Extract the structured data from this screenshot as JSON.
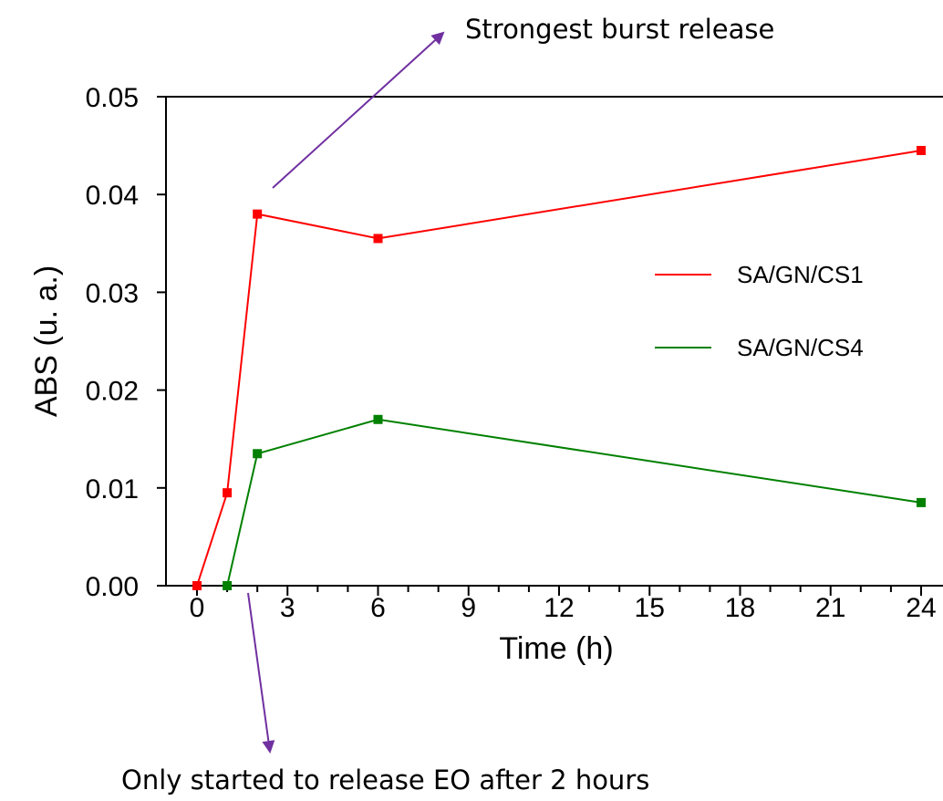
{
  "chart_data": {
    "type": "line",
    "title": "",
    "xlabel": "Time (h)",
    "ylabel": "ABS (u. a.)",
    "xlim": [
      -1,
      24.3
    ],
    "ylim": [
      0,
      0.05
    ],
    "xticks": [
      0,
      3,
      6,
      9,
      12,
      15,
      18,
      21,
      24
    ],
    "xtick_labels": [
      "0",
      "3",
      "6",
      "9",
      "12",
      "15",
      "18",
      "21",
      "24"
    ],
    "yticks": [
      0,
      0.01,
      0.02,
      0.03,
      0.04,
      0.05
    ],
    "ytick_labels": [
      "0.00",
      "0.01",
      "0.02",
      "0.03",
      "0.04",
      "0.05"
    ],
    "grid": false,
    "legend_position": "right",
    "series": [
      {
        "name": "SA/GN/CS1",
        "color": "#ff0000",
        "x": [
          0,
          1,
          2,
          6,
          24
        ],
        "y": [
          0,
          0.0095,
          0.038,
          0.0355,
          0.0445
        ]
      },
      {
        "name": "SA/GN/CS4",
        "color": "#008000",
        "x": [
          1,
          2,
          6,
          24
        ],
        "y": [
          0,
          0.0135,
          0.017,
          0.0085
        ]
      }
    ],
    "annotations": [
      {
        "text": "Strongest burst release",
        "points_to": {
          "x": 2,
          "y": 0.038
        },
        "arrow_color": "#7030a0"
      },
      {
        "text": "Only started to release EO after 2 hours",
        "points_to": {
          "x": 1.5,
          "y": 0
        },
        "arrow_color": "#7030a0"
      }
    ]
  }
}
